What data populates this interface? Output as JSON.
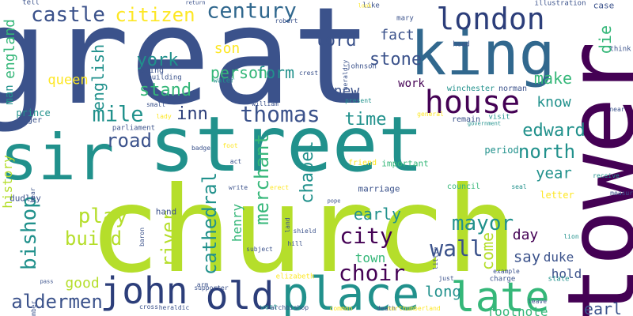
{
  "palette": {
    "purple": "#440154",
    "indigo": "#3b528b",
    "blue": "#31688e",
    "teal": "#21918c",
    "green": "#35b779",
    "lime": "#b5de2b",
    "yellow": "#fde725",
    "navy": "#2c3e7a"
  },
  "words": [
    {
      "text": "great",
      "c": "indigo"
    },
    {
      "text": "church",
      "c": "lime"
    },
    {
      "text": "street",
      "c": "teal"
    },
    {
      "text": "tower",
      "c": "purple"
    },
    {
      "text": "king",
      "c": "blue"
    },
    {
      "text": "house",
      "c": "purple"
    },
    {
      "text": "sir",
      "c": "teal"
    },
    {
      "text": "london",
      "c": "navy"
    },
    {
      "text": "place",
      "c": "teal"
    },
    {
      "text": "late",
      "c": "green"
    },
    {
      "text": "old",
      "c": "navy"
    },
    {
      "text": "john",
      "c": "navy"
    },
    {
      "text": "castle",
      "c": "indigo"
    },
    {
      "text": "citizen",
      "c": "yellow"
    },
    {
      "text": "century",
      "c": "blue"
    },
    {
      "text": "lord",
      "c": "indigo"
    },
    {
      "text": "fact",
      "c": "indigo"
    },
    {
      "text": "die",
      "c": "green"
    },
    {
      "text": "stone",
      "c": "indigo"
    },
    {
      "text": "york",
      "c": "teal"
    },
    {
      "text": "son",
      "c": "yellow"
    },
    {
      "text": "form",
      "c": "teal"
    },
    {
      "text": "person",
      "c": "green"
    },
    {
      "text": "work",
      "c": "purple"
    },
    {
      "text": "make",
      "c": "green"
    },
    {
      "text": "stand",
      "c": "green"
    },
    {
      "text": "english",
      "c": "teal"
    },
    {
      "text": "queen",
      "c": "yellow"
    },
    {
      "text": "mile",
      "c": "teal"
    },
    {
      "text": "inn",
      "c": "navy"
    },
    {
      "text": "thomas",
      "c": "indigo"
    },
    {
      "text": "new",
      "c": "indigo"
    },
    {
      "text": "time",
      "c": "teal"
    },
    {
      "text": "know",
      "c": "teal"
    },
    {
      "text": "edward",
      "c": "teal"
    },
    {
      "text": "road",
      "c": "indigo"
    },
    {
      "text": "north",
      "c": "teal"
    },
    {
      "text": "merchant",
      "c": "green"
    },
    {
      "text": "chapel",
      "c": "teal"
    },
    {
      "text": "year",
      "c": "teal"
    },
    {
      "text": "letter",
      "c": "yellow"
    },
    {
      "text": "period",
      "c": "teal"
    },
    {
      "text": "play",
      "c": "lime"
    },
    {
      "text": "bishop",
      "c": "teal"
    },
    {
      "text": "cathedral",
      "c": "teal"
    },
    {
      "text": "henry",
      "c": "green"
    },
    {
      "text": "build",
      "c": "lime"
    },
    {
      "text": "city",
      "c": "purple"
    },
    {
      "text": "river",
      "c": "lime"
    },
    {
      "text": "early",
      "c": "teal"
    },
    {
      "text": "mayor",
      "c": "teal"
    },
    {
      "text": "day",
      "c": "purple"
    },
    {
      "text": "wall",
      "c": "indigo"
    },
    {
      "text": "town",
      "c": "green"
    },
    {
      "text": "come",
      "c": "lime"
    },
    {
      "text": "say",
      "c": "indigo"
    },
    {
      "text": "duke",
      "c": "indigo"
    },
    {
      "text": "choir",
      "c": "purple"
    },
    {
      "text": "hold",
      "c": "indigo"
    },
    {
      "text": "long",
      "c": "teal"
    },
    {
      "text": "good",
      "c": "lime"
    },
    {
      "text": "aldermen",
      "c": "indigo"
    },
    {
      "text": "england",
      "c": "green"
    },
    {
      "text": "man",
      "c": "teal"
    },
    {
      "text": "history",
      "c": "lime"
    },
    {
      "text": "earl",
      "c": "indigo"
    },
    {
      "text": "footnote",
      "c": "green"
    },
    {
      "text": "marriage",
      "c": "indigo"
    },
    {
      "text": "council",
      "c": "green"
    },
    {
      "text": "important",
      "c": "green"
    },
    {
      "text": "friend",
      "c": "yellow"
    },
    {
      "text": "hand",
      "c": "indigo"
    },
    {
      "text": "dudley",
      "c": "indigo"
    },
    {
      "text": "prince",
      "c": "teal"
    },
    {
      "text": "roger",
      "c": "indigo"
    },
    {
      "text": "bring",
      "c": "indigo"
    },
    {
      "text": "building",
      "c": "indigo"
    },
    {
      "text": "robert",
      "c": "indigo"
    },
    {
      "text": "mary",
      "c": "indigo"
    },
    {
      "text": "johnson",
      "c": "indigo"
    },
    {
      "text": "head",
      "c": "indigo"
    },
    {
      "text": "remain",
      "c": "indigo"
    },
    {
      "text": "winchester",
      "c": "teal"
    },
    {
      "text": "norman",
      "c": "indigo"
    },
    {
      "text": "visit",
      "c": "teal"
    },
    {
      "text": "government",
      "c": "teal"
    },
    {
      "text": "case",
      "c": "indigo"
    },
    {
      "text": "think",
      "c": "indigo"
    },
    {
      "text": "illustration",
      "c": "indigo"
    },
    {
      "text": "like",
      "c": "indigo"
    },
    {
      "text": "look",
      "c": "yellow"
    },
    {
      "text": "tell",
      "c": "indigo"
    },
    {
      "text": "return",
      "c": "indigo"
    },
    {
      "text": "crest",
      "c": "indigo"
    },
    {
      "text": "water",
      "c": "teal"
    },
    {
      "text": "small",
      "c": "indigo"
    },
    {
      "text": "william",
      "c": "indigo"
    },
    {
      "text": "present",
      "c": "teal"
    },
    {
      "text": "parliament",
      "c": "indigo"
    },
    {
      "text": "lady",
      "c": "yellow"
    },
    {
      "text": "foot",
      "c": "yellow"
    },
    {
      "text": "act",
      "c": "indigo"
    },
    {
      "text": "badge",
      "c": "indigo"
    },
    {
      "text": "write",
      "c": "indigo"
    },
    {
      "text": "erect",
      "c": "yellow"
    },
    {
      "text": "pope",
      "c": "indigo"
    },
    {
      "text": "land",
      "c": "indigo"
    },
    {
      "text": "shield",
      "c": "indigo"
    },
    {
      "text": "hill",
      "c": "indigo"
    },
    {
      "text": "subject",
      "c": "indigo"
    },
    {
      "text": "baron",
      "c": "indigo"
    },
    {
      "text": "bear",
      "c": "indigo"
    },
    {
      "text": "elizabeth",
      "c": "yellow"
    },
    {
      "text": "pass",
      "c": "indigo"
    },
    {
      "text": "cross",
      "c": "indigo"
    },
    {
      "text": "heraldic",
      "c": "indigo"
    },
    {
      "text": "supporter",
      "c": "indigo"
    },
    {
      "text": "west",
      "c": "teal"
    },
    {
      "text": "archbishop",
      "c": "indigo"
    },
    {
      "text": "common",
      "c": "yellow"
    },
    {
      "text": "death",
      "c": "indigo"
    },
    {
      "text": "northumberland",
      "c": "yellow"
    },
    {
      "text": "number",
      "c": "indigo"
    },
    {
      "text": "arm",
      "c": "indigo"
    },
    {
      "text": "leave",
      "c": "indigo"
    },
    {
      "text": "state",
      "c": "teal"
    },
    {
      "text": "charge",
      "c": "indigo"
    },
    {
      "text": "just",
      "c": "indigo"
    },
    {
      "text": "example",
      "c": "indigo"
    },
    {
      "text": "little",
      "c": "indigo"
    },
    {
      "text": "lion",
      "c": "teal"
    },
    {
      "text": "measure",
      "c": "indigo"
    },
    {
      "text": "receive",
      "c": "teal"
    },
    {
      "text": "seal",
      "c": "teal"
    },
    {
      "text": "near",
      "c": "indigo"
    },
    {
      "text": "general",
      "c": "yellow"
    },
    {
      "text": "heraldry",
      "c": "indigo"
    }
  ]
}
